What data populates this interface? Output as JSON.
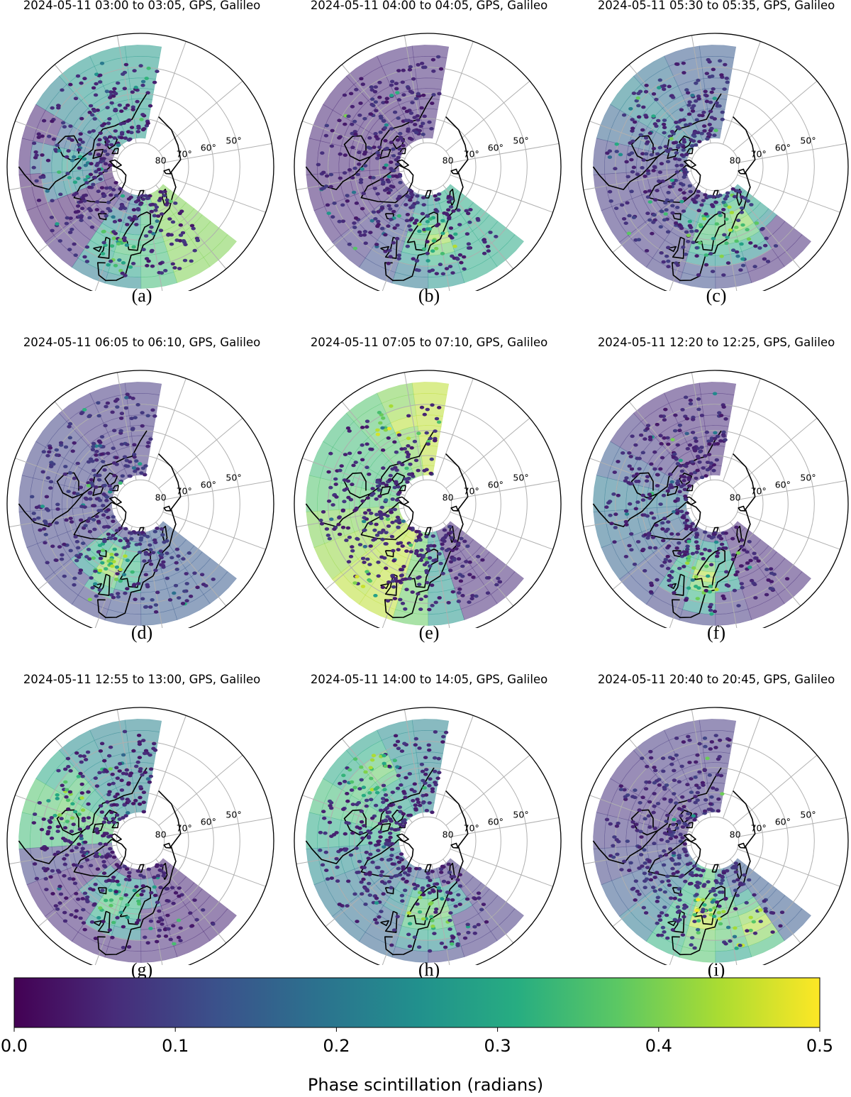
{
  "figure": {
    "panels": [
      {
        "label": "(a)",
        "title": "2024-05-11 03:00 to 03:05, GPS, Galileo",
        "shading": [
          0.27,
          0.27,
          0.26,
          0.22,
          0.05,
          0.05,
          0.04,
          0.04,
          0.06,
          0.1,
          0.2,
          0.34,
          0.4
        ],
        "hotspots": [
          {
            "lon": 5,
            "lat": 55,
            "value": 0.4
          },
          {
            "lon": -70,
            "lat": 60,
            "value": 0.3
          }
        ],
        "point_level": 0.06
      },
      {
        "label": "(b)",
        "title": "2024-05-11 04:00 to 04:05, GPS, Galileo",
        "shading": [
          0.06,
          0.06,
          0.05,
          0.05,
          0.05,
          0.05,
          0.05,
          0.06,
          0.08,
          0.12,
          0.2,
          0.26,
          0.3
        ],
        "hotspots": [
          {
            "lon": 25,
            "lat": 60,
            "value": 0.45
          }
        ],
        "point_level": 0.06
      },
      {
        "label": "(c)",
        "title": "2024-05-11 05:30 to 05:35, GPS, Galileo",
        "shading": [
          0.14,
          0.14,
          0.18,
          0.22,
          0.16,
          0.1,
          0.08,
          0.08,
          0.08,
          0.09,
          0.12,
          0.1,
          0.06
        ],
        "hotspots": [
          {
            "lon": 40,
            "lat": 65,
            "value": 0.45
          },
          {
            "lon": 20,
            "lat": 62,
            "value": 0.42
          }
        ],
        "point_level": 0.07
      },
      {
        "label": "(d)",
        "title": "2024-05-11 06:05 to 06:10, GPS, Galileo",
        "shading": [
          0.08,
          0.08,
          0.08,
          0.1,
          0.1,
          0.1,
          0.1,
          0.1,
          0.1,
          0.1,
          0.12,
          0.14,
          0.14
        ],
        "hotspots": [
          {
            "lon": -5,
            "lat": 62,
            "value": 0.45
          }
        ],
        "point_level": 0.07
      },
      {
        "label": "(e)",
        "title": "2024-05-11 07:05 to 07:10, GPS, Galileo",
        "shading": [
          0.45,
          0.4,
          0.36,
          0.34,
          0.34,
          0.36,
          0.4,
          0.42,
          0.44,
          0.45,
          0.38,
          0.26,
          0.06
        ],
        "hotspots": [
          {
            "lon": -140,
            "lat": 55,
            "value": 0.5
          },
          {
            "lon": -20,
            "lat": 45,
            "value": 0.5
          }
        ],
        "point_level": 0.06
      },
      {
        "label": "(f)",
        "title": "2024-05-11 12:20 to 12:25, GPS, Galileo",
        "shading": [
          0.06,
          0.06,
          0.06,
          0.08,
          0.14,
          0.2,
          0.18,
          0.16,
          0.12,
          0.1,
          0.1,
          0.08,
          0.06
        ],
        "hotspots": [
          {
            "lon": 10,
            "lat": 60,
            "value": 0.45
          }
        ],
        "point_level": 0.06
      },
      {
        "label": "(g)",
        "title": "2024-05-11 12:55 to 13:00, GPS, Galileo",
        "shading": [
          0.22,
          0.22,
          0.24,
          0.3,
          0.36,
          0.34,
          0.1,
          0.06,
          0.06,
          0.06,
          0.06,
          0.06,
          0.05
        ],
        "hotspots": [
          {
            "lon": -100,
            "lat": 55,
            "value": 0.45
          },
          {
            "lon": 0,
            "lat": 62,
            "value": 0.4
          }
        ],
        "point_level": 0.05
      },
      {
        "label": "(h)",
        "title": "2024-05-11 14:00 to 14:05, GPS, Galileo",
        "shading": [
          0.22,
          0.24,
          0.28,
          0.3,
          0.34,
          0.3,
          0.24,
          0.2,
          0.18,
          0.16,
          0.14,
          0.1,
          0.08
        ],
        "hotspots": [
          {
            "lon": -120,
            "lat": 55,
            "value": 0.45
          },
          {
            "lon": 20,
            "lat": 60,
            "value": 0.45
          }
        ],
        "point_level": 0.06
      },
      {
        "label": "(i)",
        "title": "2024-05-11 20:40 to 20:45, GPS, Galileo",
        "shading": [
          0.08,
          0.08,
          0.08,
          0.07,
          0.07,
          0.08,
          0.1,
          0.14,
          0.2,
          0.32,
          0.36,
          0.22,
          0.14
        ],
        "hotspots": [
          {
            "lon": 15,
            "lat": 58,
            "value": 0.5
          },
          {
            "lon": 40,
            "lat": 52,
            "value": 0.5
          }
        ],
        "point_level": 0.07
      }
    ],
    "latitude_ring_labels": [
      "80",
      "70°",
      "60°",
      "50°"
    ],
    "latitude_ring_values": [
      80,
      70,
      60,
      50
    ]
  },
  "chart_data": {
    "type": "heatmap",
    "projection": "north polar stereographic",
    "colorbar_label": "Phase scintillation (radians)",
    "colorbar_ticks": [
      "0.0",
      "0.1",
      "0.2",
      "0.3",
      "0.4",
      "0.5"
    ],
    "colorbar_range": [
      0.0,
      0.5
    ],
    "colormap": [
      "#440154",
      "#472c7a",
      "#3b518b",
      "#2c718e",
      "#21908d",
      "#27ad81",
      "#5cc863",
      "#aadc32",
      "#fde725"
    ],
    "coverage_longitude_range": [
      -170,
      55
    ],
    "coverage_latitude_range": [
      42,
      78
    ]
  }
}
